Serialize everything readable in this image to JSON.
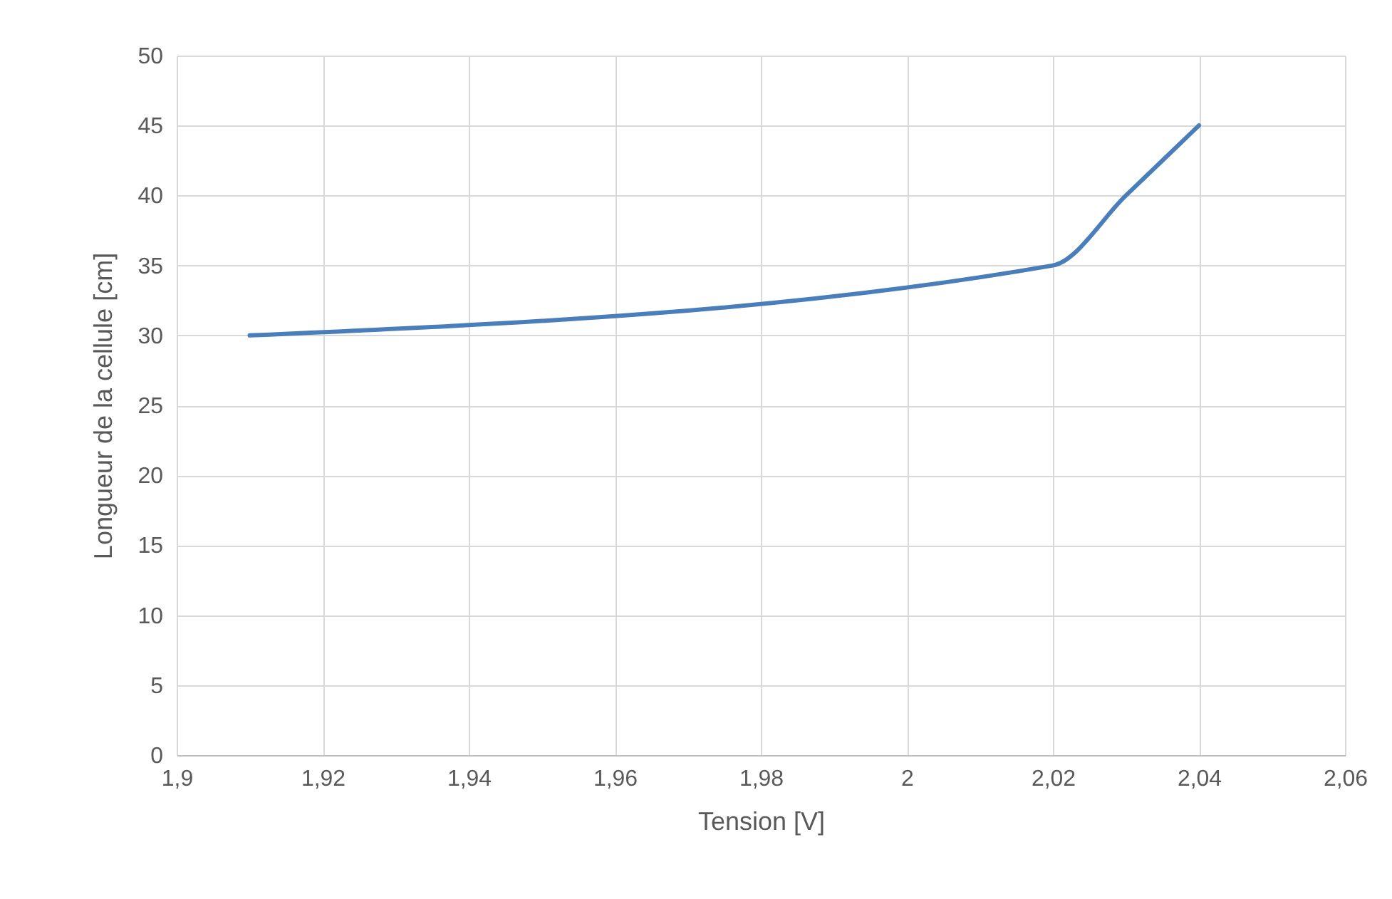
{
  "chart_data": {
    "type": "line",
    "xlabel": "Tension [V]",
    "ylabel": "Longueur de la cellule [cm]",
    "x": [
      1.91,
      2.02,
      2.03,
      2.04
    ],
    "series": [
      {
        "color": "#4a7ebb",
        "values": [
          30,
          35,
          40,
          45
        ]
      }
    ],
    "xlim": [
      1.9,
      2.06
    ],
    "xticks": [
      {
        "value": 1.9,
        "label": "1,9"
      },
      {
        "value": 1.92,
        "label": "1,92"
      },
      {
        "value": 1.94,
        "label": "1,94"
      },
      {
        "value": 1.96,
        "label": "1,96"
      },
      {
        "value": 1.98,
        "label": "1,98"
      },
      2,
      {
        "value": 2.02,
        "label": "2,02"
      },
      {
        "value": 2.04,
        "label": "2,04"
      },
      {
        "value": 2.06,
        "label": "2,06"
      }
    ],
    "ylim": [
      0,
      50
    ],
    "yticks": [
      0,
      5,
      10,
      15,
      20,
      25,
      30,
      35,
      40,
      45,
      50
    ],
    "grid": true,
    "line_style": "solid",
    "marker": "none"
  }
}
